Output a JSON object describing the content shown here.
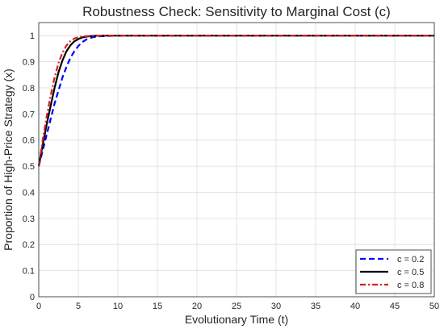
{
  "chart_data": {
    "type": "line",
    "title": "Robustness Check: Sensitivity to Marginal Cost (c)",
    "xlabel": "Evolutionary Time (t)",
    "ylabel": "Proportion of High-Price Strategy (x)",
    "xlim": [
      0,
      50
    ],
    "ylim": [
      0,
      1.05
    ],
    "xticks": [
      0,
      5,
      10,
      15,
      20,
      25,
      30,
      35,
      40,
      45,
      50
    ],
    "yticks": [
      0,
      0.1,
      0.2,
      0.3,
      0.4,
      0.5,
      0.6,
      0.7,
      0.8,
      0.9,
      1
    ],
    "grid": true,
    "legend_position": "bottom-right",
    "series": [
      {
        "name": "c = 0.2",
        "color": "#0000ff",
        "style": "dashed",
        "x": [
          0,
          0.5,
          1,
          1.5,
          2,
          2.5,
          3,
          3.5,
          4,
          4.5,
          5,
          5.5,
          6,
          6.5,
          7,
          8,
          9,
          10,
          15,
          20,
          25,
          30,
          35,
          40,
          45,
          50
        ],
        "y": [
          0.5,
          0.56,
          0.62,
          0.68,
          0.74,
          0.79,
          0.84,
          0.88,
          0.915,
          0.94,
          0.96,
          0.975,
          0.985,
          0.991,
          0.995,
          0.998,
          0.999,
          1,
          1,
          1,
          1,
          1,
          1,
          1,
          1,
          1
        ]
      },
      {
        "name": "c = 0.5",
        "color": "#000000",
        "style": "solid",
        "x": [
          0,
          0.5,
          1,
          1.5,
          2,
          2.5,
          3,
          3.5,
          4,
          4.5,
          5,
          5.5,
          6,
          6.5,
          7,
          8,
          9,
          10,
          15,
          20,
          25,
          30,
          35,
          40,
          45,
          50
        ],
        "y": [
          0.5,
          0.58,
          0.66,
          0.73,
          0.8,
          0.86,
          0.905,
          0.94,
          0.963,
          0.978,
          0.987,
          0.993,
          0.996,
          0.998,
          0.999,
          1,
          1,
          1,
          1,
          1,
          1,
          1,
          1,
          1,
          1,
          1
        ]
      },
      {
        "name": "c = 0.8",
        "color": "#d62020",
        "style": "dashdot",
        "x": [
          0,
          0.5,
          1,
          1.5,
          2,
          2.5,
          3,
          3.5,
          4,
          4.5,
          5,
          5.5,
          6,
          6.5,
          7,
          8,
          9,
          10,
          15,
          20,
          25,
          30,
          35,
          40,
          45,
          50
        ],
        "y": [
          0.5,
          0.6,
          0.69,
          0.77,
          0.84,
          0.895,
          0.935,
          0.962,
          0.979,
          0.989,
          0.994,
          0.997,
          0.998,
          0.999,
          1,
          1,
          1,
          1,
          1,
          1,
          1,
          1,
          1,
          1,
          1,
          1
        ]
      }
    ]
  }
}
